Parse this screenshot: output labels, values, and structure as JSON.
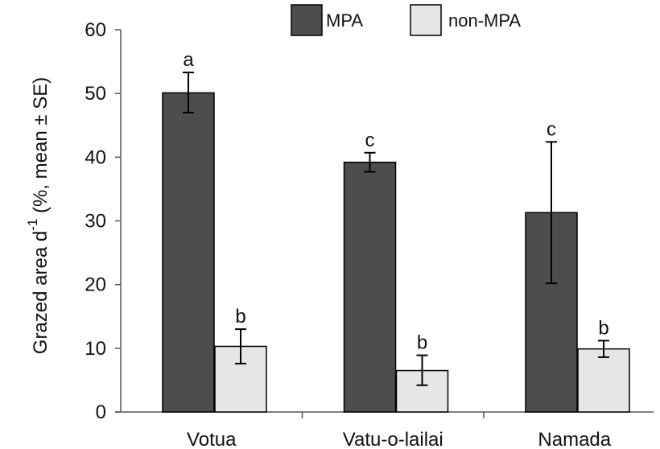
{
  "chart_data": {
    "type": "bar",
    "title": "",
    "xlabel": "",
    "ylabel": {
      "main": "Grazed area d",
      "superscript": "-1",
      "suffix": " (%, mean ± SE)"
    },
    "ylim": [
      0,
      60
    ],
    "yticks": [
      "0",
      "10",
      "20",
      "30",
      "40",
      "50",
      "60"
    ],
    "grid": false,
    "legend_position": "top-center",
    "categories": [
      "Votua",
      "Vatu-o-lailai",
      "Namada"
    ],
    "series": [
      {
        "name": "MPA",
        "color": "#4d4d4d",
        "values": [
          50.1,
          39.2,
          31.3
        ],
        "error_low": [
          47.0,
          37.7,
          20.2
        ],
        "error_high": [
          53.3,
          40.7,
          42.4
        ],
        "significance": [
          "a",
          "c",
          "c"
        ]
      },
      {
        "name": "non-MPA",
        "color": "#e6e6e6",
        "values": [
          10.3,
          6.5,
          9.9
        ],
        "error_low": [
          7.6,
          4.2,
          8.6
        ],
        "error_high": [
          13.0,
          8.9,
          11.2
        ],
        "significance": [
          "b",
          "b",
          "b"
        ]
      }
    ]
  }
}
